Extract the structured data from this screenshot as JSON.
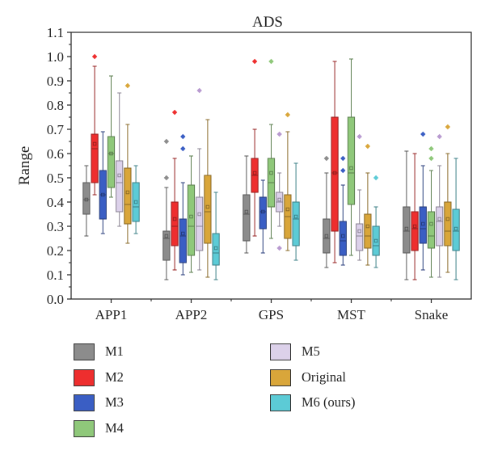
{
  "chart_data": {
    "type": "boxplot",
    "title": "ADS",
    "xlabel": "",
    "ylabel": "Range",
    "ylim": [
      0.0,
      1.1
    ],
    "yticks": [
      "0.0",
      "0.1",
      "0.2",
      "0.3",
      "0.4",
      "0.5",
      "0.6",
      "0.7",
      "0.8",
      "0.9",
      "1.0",
      "1.1"
    ],
    "categories": [
      "APP1",
      "APP2",
      "GPS",
      "MST",
      "Snake"
    ],
    "legend_position": "bottom",
    "series": [
      {
        "name": "M1",
        "color": "#8c8c8c",
        "stats": [
          {
            "min": 0.26,
            "q1": 0.35,
            "median": 0.41,
            "mean": 0.41,
            "q3": 0.48,
            "max": 0.55,
            "outliers": []
          },
          {
            "min": 0.08,
            "q1": 0.16,
            "median": 0.25,
            "mean": 0.26,
            "q3": 0.28,
            "max": 0.46,
            "outliers": [
              0.5,
              0.65
            ]
          },
          {
            "min": 0.19,
            "q1": 0.24,
            "median": 0.35,
            "mean": 0.36,
            "q3": 0.43,
            "max": 0.59,
            "outliers": []
          },
          {
            "min": 0.13,
            "q1": 0.19,
            "median": 0.25,
            "mean": 0.26,
            "q3": 0.33,
            "max": 0.52,
            "outliers": [
              0.58
            ]
          },
          {
            "min": 0.08,
            "q1": 0.19,
            "median": 0.28,
            "mean": 0.29,
            "q3": 0.38,
            "max": 0.61,
            "outliers": []
          }
        ]
      },
      {
        "name": "M2",
        "color": "#ee2e2e",
        "stats": [
          {
            "min": 0.43,
            "q1": 0.48,
            "median": 0.62,
            "mean": 0.64,
            "q3": 0.68,
            "max": 0.96,
            "outliers": [
              1.0
            ]
          },
          {
            "min": 0.12,
            "q1": 0.22,
            "median": 0.3,
            "mean": 0.33,
            "q3": 0.4,
            "max": 0.58,
            "outliers": [
              0.77
            ]
          },
          {
            "min": 0.26,
            "q1": 0.44,
            "median": 0.51,
            "mean": 0.52,
            "q3": 0.58,
            "max": 0.7,
            "outliers": [
              0.98
            ]
          },
          {
            "min": 0.15,
            "q1": 0.28,
            "median": 0.52,
            "mean": 0.52,
            "q3": 0.75,
            "max": 0.98,
            "outliers": []
          },
          {
            "min": 0.08,
            "q1": 0.2,
            "median": 0.29,
            "mean": 0.3,
            "q3": 0.36,
            "max": 0.6,
            "outliers": []
          }
        ]
      },
      {
        "name": "M3",
        "color": "#3a5ec4",
        "stats": [
          {
            "min": 0.27,
            "q1": 0.33,
            "median": 0.43,
            "mean": 0.43,
            "q3": 0.53,
            "max": 0.69,
            "outliers": []
          },
          {
            "min": 0.1,
            "q1": 0.15,
            "median": 0.26,
            "mean": 0.27,
            "q3": 0.33,
            "max": 0.48,
            "outliers": [
              0.62,
              0.67
            ]
          },
          {
            "min": 0.19,
            "q1": 0.29,
            "median": 0.36,
            "mean": 0.36,
            "q3": 0.42,
            "max": 0.49,
            "outliers": []
          },
          {
            "min": 0.14,
            "q1": 0.18,
            "median": 0.24,
            "mean": 0.26,
            "q3": 0.32,
            "max": 0.47,
            "outliers": [
              0.53,
              0.58
            ]
          },
          {
            "min": 0.12,
            "q1": 0.23,
            "median": 0.29,
            "mean": 0.31,
            "q3": 0.38,
            "max": 0.55,
            "outliers": [
              0.68
            ]
          }
        ]
      },
      {
        "name": "M4",
        "color": "#8fc87a",
        "stats": [
          {
            "min": 0.42,
            "q1": 0.46,
            "median": 0.6,
            "mean": 0.6,
            "q3": 0.67,
            "max": 0.92,
            "outliers": []
          },
          {
            "min": 0.11,
            "q1": 0.18,
            "median": 0.3,
            "mean": 0.34,
            "q3": 0.47,
            "max": 0.59,
            "outliers": []
          },
          {
            "min": 0.25,
            "q1": 0.38,
            "median": 0.48,
            "mean": 0.52,
            "q3": 0.58,
            "max": 0.72,
            "outliers": [
              0.98
            ]
          },
          {
            "min": 0.18,
            "q1": 0.39,
            "median": 0.52,
            "mean": 0.54,
            "q3": 0.75,
            "max": 0.99,
            "outliers": []
          },
          {
            "min": 0.09,
            "q1": 0.21,
            "median": 0.26,
            "mean": 0.31,
            "q3": 0.36,
            "max": 0.53,
            "outliers": [
              0.58,
              0.62
            ]
          }
        ]
      },
      {
        "name": "M5",
        "color": "#dcd1ea",
        "stats": [
          {
            "min": 0.3,
            "q1": 0.36,
            "median": 0.48,
            "mean": 0.51,
            "q3": 0.57,
            "max": 0.85,
            "outliers": []
          },
          {
            "min": 0.12,
            "q1": 0.2,
            "median": 0.3,
            "mean": 0.35,
            "q3": 0.42,
            "max": 0.62,
            "outliers": [
              0.86
            ]
          },
          {
            "min": 0.3,
            "q1": 0.36,
            "median": 0.4,
            "mean": 0.41,
            "q3": 0.44,
            "max": 0.52,
            "outliers": [
              0.68,
              0.21
            ]
          },
          {
            "min": 0.16,
            "q1": 0.2,
            "median": 0.26,
            "mean": 0.28,
            "q3": 0.31,
            "max": 0.45,
            "outliers": [
              0.67
            ]
          },
          {
            "min": 0.09,
            "q1": 0.22,
            "median": 0.32,
            "mean": 0.33,
            "q3": 0.38,
            "max": 0.55,
            "outliers": [
              0.67
            ]
          }
        ]
      },
      {
        "name": "Original",
        "color": "#d9a63a",
        "stats": [
          {
            "min": 0.23,
            "q1": 0.31,
            "median": 0.39,
            "mean": 0.44,
            "q3": 0.54,
            "max": 0.72,
            "outliers": [
              0.88
            ]
          },
          {
            "min": 0.09,
            "q1": 0.23,
            "median": 0.36,
            "mean": 0.38,
            "q3": 0.51,
            "max": 0.74,
            "outliers": []
          },
          {
            "min": 0.2,
            "q1": 0.25,
            "median": 0.34,
            "mean": 0.37,
            "q3": 0.43,
            "max": 0.69,
            "outliers": [
              0.76
            ]
          },
          {
            "min": 0.14,
            "q1": 0.21,
            "median": 0.26,
            "mean": 0.3,
            "q3": 0.35,
            "max": 0.52,
            "outliers": [
              0.63
            ]
          },
          {
            "min": 0.11,
            "q1": 0.22,
            "median": 0.28,
            "mean": 0.33,
            "q3": 0.4,
            "max": 0.6,
            "outliers": [
              0.71
            ]
          }
        ]
      },
      {
        "name": "M6 (ours)",
        "color": "#5ccbd6",
        "stats": [
          {
            "min": 0.27,
            "q1": 0.32,
            "median": 0.38,
            "mean": 0.4,
            "q3": 0.48,
            "max": 0.55,
            "outliers": []
          },
          {
            "min": 0.08,
            "q1": 0.14,
            "median": 0.19,
            "mean": 0.21,
            "q3": 0.27,
            "max": 0.44,
            "outliers": []
          },
          {
            "min": 0.16,
            "q1": 0.22,
            "median": 0.33,
            "mean": 0.34,
            "q3": 0.4,
            "max": 0.56,
            "outliers": []
          },
          {
            "min": 0.13,
            "q1": 0.18,
            "median": 0.22,
            "mean": 0.24,
            "q3": 0.3,
            "max": 0.38,
            "outliers": [
              0.5
            ]
          },
          {
            "min": 0.08,
            "q1": 0.2,
            "median": 0.28,
            "mean": 0.29,
            "q3": 0.37,
            "max": 0.58,
            "outliers": []
          }
        ]
      }
    ]
  }
}
